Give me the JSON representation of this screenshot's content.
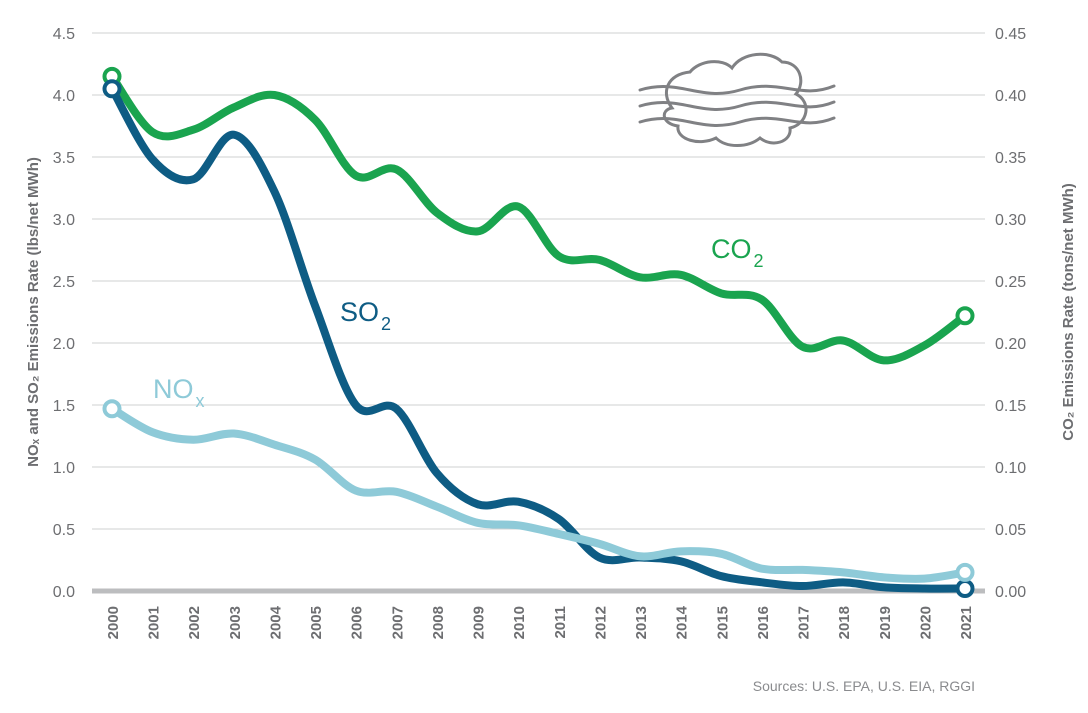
{
  "chart_data": {
    "type": "line",
    "x": [
      "2000",
      "2001",
      "2002",
      "2003",
      "2004",
      "2005",
      "2006",
      "2007",
      "2008",
      "2009",
      "2010",
      "2011",
      "2012",
      "2013",
      "2014",
      "2015",
      "2016",
      "2017",
      "2018",
      "2019",
      "2020",
      "2021"
    ],
    "left_axis": {
      "label": "NOₓ and SO₂ Emissions Rate (lbs/net MWh)",
      "ylim": [
        0,
        4.5
      ],
      "ticks": [
        "0.0",
        "0.5",
        "1.0",
        "1.5",
        "2.0",
        "2.5",
        "3.0",
        "3.5",
        "4.0",
        "4.5"
      ]
    },
    "right_axis": {
      "label": "CO₂ Emissions Rate (tons/net MWh)",
      "ylim": [
        0,
        0.45
      ],
      "ticks": [
        "0.00",
        "0.05",
        "0.10",
        "0.15",
        "0.20",
        "0.25",
        "0.30",
        "0.35",
        "0.40",
        "0.45"
      ]
    },
    "grid": true,
    "series": [
      {
        "label_main": "CO",
        "label_sub": "2",
        "axis": "right",
        "color": "#1aa44f",
        "values": [
          0.415,
          0.37,
          0.372,
          0.39,
          0.4,
          0.38,
          0.335,
          0.34,
          0.305,
          0.29,
          0.31,
          0.27,
          0.267,
          0.253,
          0.255,
          0.24,
          0.235,
          0.197,
          0.202,
          0.186,
          0.198,
          0.222
        ]
      },
      {
        "label_main": "SO",
        "label_sub": "2",
        "axis": "left",
        "color": "#0e5c84",
        "values": [
          4.05,
          3.48,
          3.32,
          3.68,
          3.22,
          2.3,
          1.5,
          1.47,
          0.95,
          0.7,
          0.72,
          0.58,
          0.27,
          0.27,
          0.24,
          0.12,
          0.07,
          0.04,
          0.07,
          0.03,
          0.02,
          0.02
        ]
      },
      {
        "label_main": "NO",
        "label_sub": "x",
        "axis": "left",
        "color": "#8ecad8",
        "values": [
          1.47,
          1.28,
          1.22,
          1.27,
          1.18,
          1.06,
          0.81,
          0.8,
          0.68,
          0.55,
          0.53,
          0.46,
          0.38,
          0.28,
          0.32,
          0.3,
          0.18,
          0.17,
          0.15,
          0.11,
          0.1,
          0.15
        ]
      }
    ],
    "source": "Sources: U.S. EPA, U.S. EIA, RGGI"
  },
  "icon": {
    "name": "smog-cloud-icon",
    "color": "#808184"
  }
}
